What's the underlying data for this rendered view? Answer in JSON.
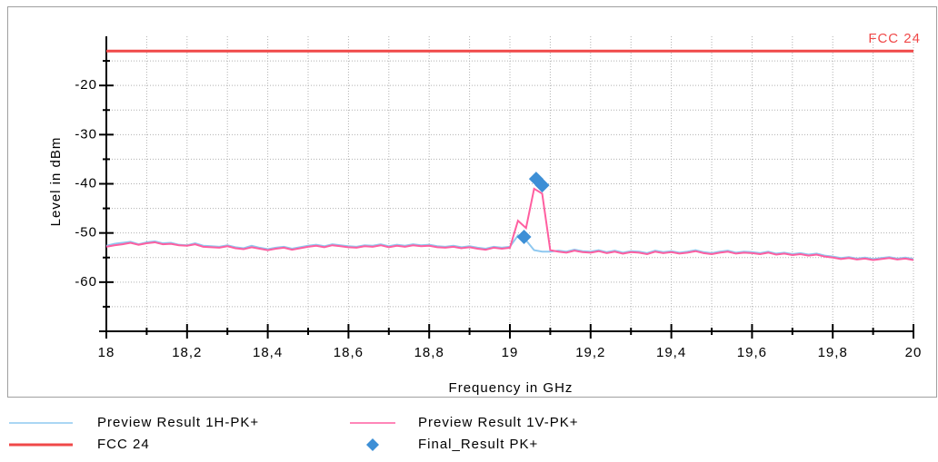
{
  "chart_data": {
    "type": "line",
    "ylabel": "Level in dBm",
    "xlabel": "Frequency in GHz",
    "xlim": [
      18,
      20
    ],
    "ylim": [
      -70,
      -10
    ],
    "xticks": [
      18,
      {
        "value": 18.2,
        "label": "18,2"
      },
      {
        "value": 18.4,
        "label": "18,4"
      },
      {
        "value": 18.6,
        "label": "18,6"
      },
      {
        "value": 18.8,
        "label": "18,8"
      },
      19,
      {
        "value": 19.2,
        "label": "19,2"
      },
      {
        "value": 19.4,
        "label": "19,4"
      },
      {
        "value": 19.6,
        "label": "19,6"
      },
      {
        "value": 19.8,
        "label": "19,8"
      },
      20
    ],
    "xminorticks": [
      18.1,
      18.3,
      18.5,
      18.7,
      18.9,
      19.1,
      19.3,
      19.5,
      19.7,
      19.9
    ],
    "yticks": [
      -20,
      -30,
      -40,
      -50,
      -60
    ],
    "yminorticks": [
      -15,
      -25,
      -35,
      -45,
      -55,
      -65
    ],
    "grid": true,
    "x": [
      18.0,
      18.02,
      18.04,
      18.06,
      18.08,
      18.1,
      18.12,
      18.14,
      18.16,
      18.18,
      18.2,
      18.22,
      18.24,
      18.26,
      18.28,
      18.3,
      18.32,
      18.34,
      18.36,
      18.38,
      18.4,
      18.42,
      18.44,
      18.46,
      18.48,
      18.5,
      18.52,
      18.54,
      18.56,
      18.58,
      18.6,
      18.62,
      18.64,
      18.66,
      18.68,
      18.7,
      18.72,
      18.74,
      18.76,
      18.78,
      18.8,
      18.82,
      18.84,
      18.86,
      18.88,
      18.9,
      18.92,
      18.94,
      18.96,
      18.98,
      19.0,
      19.02,
      19.04,
      19.06,
      19.08,
      19.1,
      19.12,
      19.14,
      19.16,
      19.18,
      19.2,
      19.22,
      19.24,
      19.26,
      19.28,
      19.3,
      19.32,
      19.34,
      19.36,
      19.38,
      19.4,
      19.42,
      19.44,
      19.46,
      19.48,
      19.5,
      19.52,
      19.54,
      19.56,
      19.58,
      19.6,
      19.62,
      19.64,
      19.66,
      19.68,
      19.7,
      19.72,
      19.74,
      19.76,
      19.78,
      19.8,
      19.82,
      19.84,
      19.86,
      19.88,
      19.9,
      19.92,
      19.94,
      19.96,
      19.98,
      20.0
    ],
    "series": [
      {
        "name": "Preview Result 1H-PK+",
        "color": "#8ec8f0",
        "values": [
          -52.6,
          -52.2,
          -52.0,
          -51.8,
          -52.3,
          -51.9,
          -51.7,
          -52.1,
          -52.0,
          -52.4,
          -52.5,
          -52.1,
          -52.6,
          -52.7,
          -52.8,
          -52.5,
          -52.9,
          -53.1,
          -52.6,
          -53.0,
          -53.3,
          -53.0,
          -52.8,
          -53.2,
          -52.9,
          -52.6,
          -52.4,
          -52.7,
          -52.3,
          -52.5,
          -52.7,
          -52.8,
          -52.5,
          -52.6,
          -52.3,
          -52.7,
          -52.4,
          -52.6,
          -52.3,
          -52.5,
          -52.4,
          -52.7,
          -52.8,
          -52.6,
          -52.9,
          -52.7,
          -53.0,
          -53.2,
          -52.8,
          -53.0,
          -52.8,
          -50.5,
          -51.5,
          -53.5,
          -53.8,
          -53.8,
          -53.6,
          -53.8,
          -53.4,
          -53.7,
          -53.8,
          -53.5,
          -53.9,
          -53.6,
          -54.0,
          -53.7,
          -53.8,
          -54.1,
          -53.6,
          -53.9,
          -53.7,
          -54.0,
          -53.8,
          -53.5,
          -53.9,
          -54.1,
          -53.8,
          -53.6,
          -54.0,
          -53.8,
          -53.9,
          -54.1,
          -53.8,
          -54.2,
          -54.0,
          -54.3,
          -54.1,
          -54.4,
          -54.2,
          -54.6,
          -54.8,
          -55.1,
          -54.9,
          -55.2,
          -55.0,
          -55.3,
          -55.1,
          -54.9,
          -55.2,
          -55.0,
          -55.3
        ]
      },
      {
        "name": "Preview Result 1V-PK+",
        "color": "#ff5fa0",
        "values": [
          -52.8,
          -52.5,
          -52.3,
          -52.0,
          -52.4,
          -52.1,
          -51.9,
          -52.3,
          -52.2,
          -52.5,
          -52.6,
          -52.3,
          -52.8,
          -52.9,
          -53.0,
          -52.7,
          -53.1,
          -53.3,
          -52.9,
          -53.2,
          -53.5,
          -53.2,
          -53.0,
          -53.4,
          -53.1,
          -52.8,
          -52.6,
          -52.9,
          -52.5,
          -52.7,
          -52.9,
          -53.0,
          -52.7,
          -52.8,
          -52.5,
          -52.9,
          -52.6,
          -52.8,
          -52.5,
          -52.7,
          -52.6,
          -52.9,
          -53.0,
          -52.8,
          -53.1,
          -52.9,
          -53.2,
          -53.4,
          -53.0,
          -53.2,
          -53.0,
          -47.5,
          -49.0,
          -41.0,
          -42.0,
          -53.5,
          -53.8,
          -54.0,
          -53.6,
          -53.9,
          -54.0,
          -53.7,
          -54.1,
          -53.8,
          -54.2,
          -53.9,
          -54.0,
          -54.3,
          -53.8,
          -54.1,
          -53.9,
          -54.2,
          -54.0,
          -53.7,
          -54.1,
          -54.3,
          -54.0,
          -53.8,
          -54.2,
          -54.0,
          -54.1,
          -54.3,
          -54.0,
          -54.4,
          -54.2,
          -54.5,
          -54.3,
          -54.6,
          -54.4,
          -54.8,
          -55.0,
          -55.3,
          -55.1,
          -55.4,
          -55.2,
          -55.5,
          -55.3,
          -55.1,
          -55.4,
          -55.2,
          -55.5
        ]
      }
    ],
    "limit": {
      "name": "FCC 24",
      "color": "#f04848",
      "value": -13
    },
    "markers": {
      "name": "Final_Result PK+",
      "color": "#3d8fd6",
      "x": [
        19.035,
        19.065,
        19.08
      ],
      "values": [
        -50.8,
        -39.0,
        -40.3
      ]
    }
  }
}
